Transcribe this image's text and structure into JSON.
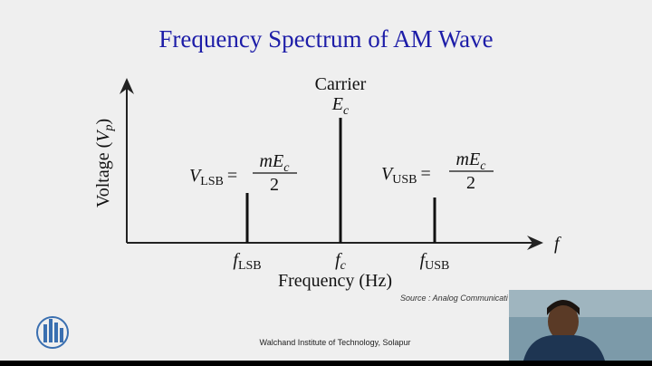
{
  "title": "Frequency Spectrum of AM Wave",
  "y_axis_label": {
    "word": "Voltage (",
    "symbol": "V",
    "subscript": "p",
    "close": ")"
  },
  "x_axis_label": "Frequency (Hz)",
  "x_axis_symbol": "f",
  "carrier": {
    "label": "Carrier",
    "symbol": "E",
    "subscript": "c"
  },
  "lower_sideband": {
    "symbol": "V",
    "subscript": "LSB",
    "equals": "=",
    "numerator": "mE",
    "numerator_subscript": "c",
    "denominator": "2"
  },
  "upper_sideband": {
    "symbol": "V",
    "subscript": "USB",
    "equals": "=",
    "numerator": "mE",
    "numerator_subscript": "c",
    "denominator": "2"
  },
  "x_ticks": [
    {
      "symbol": "f",
      "subscript": "LSB"
    },
    {
      "symbol": "f",
      "subscript": "c"
    },
    {
      "symbol": "f",
      "subscript": "USB"
    }
  ],
  "source": "Source : Analog Communicati",
  "footer": "Walchand Institute of Technology, Solapur"
}
